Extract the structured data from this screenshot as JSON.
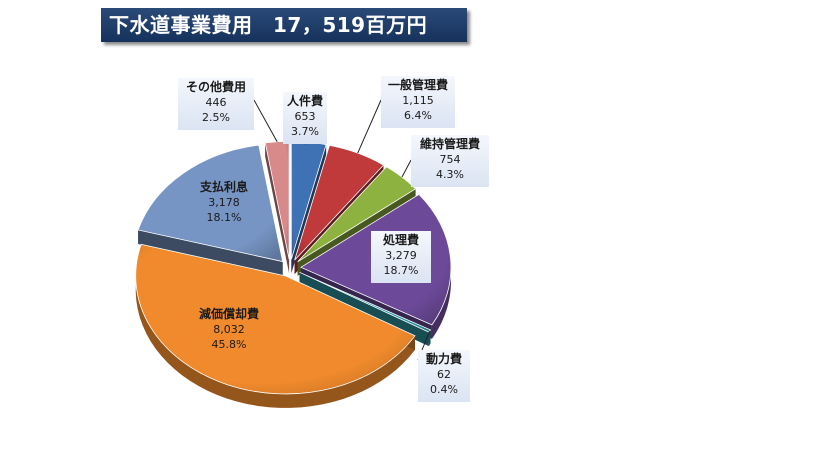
{
  "title": "下水道事業費用　17，519百万円",
  "chart_data": {
    "type": "pie",
    "title": "下水道事業費用　17，519百万円",
    "slices": [
      {
        "label": "人件費",
        "value_text": "653",
        "pct_text": "3.7%",
        "value": 653,
        "percent": 3.7,
        "color": "#3f72b5"
      },
      {
        "label": "一般管理費",
        "value_text": "1,115",
        "pct_text": "6.4%",
        "value": 1115,
        "percent": 6.4,
        "color": "#c0393b"
      },
      {
        "label": "維持管理費",
        "value_text": "754",
        "pct_text": "4.3%",
        "value": 754,
        "percent": 4.3,
        "color": "#8db23f"
      },
      {
        "label": "処理費",
        "value_text": "3,279",
        "pct_text": "18.7%",
        "value": 3279,
        "percent": 18.7,
        "color": "#6c4a99"
      },
      {
        "label": "動力費",
        "value_text": "62",
        "pct_text": "0.4%",
        "value": 62,
        "percent": 0.4,
        "color": "#2f9aa8"
      },
      {
        "label": "減価償却費",
        "value_text": "8,032",
        "pct_text": "45.8%",
        "value": 8032,
        "percent": 45.8,
        "color": "#f08a2c"
      },
      {
        "label": "支払利息",
        "value_text": "3,178",
        "pct_text": "18.1%",
        "value": 3178,
        "percent": 18.1,
        "color": "#7795c4"
      },
      {
        "label": "その他費用",
        "value_text": "446",
        "pct_text": "2.5%",
        "value": 446,
        "percent": 2.5,
        "color": "#d88a8a"
      }
    ]
  }
}
